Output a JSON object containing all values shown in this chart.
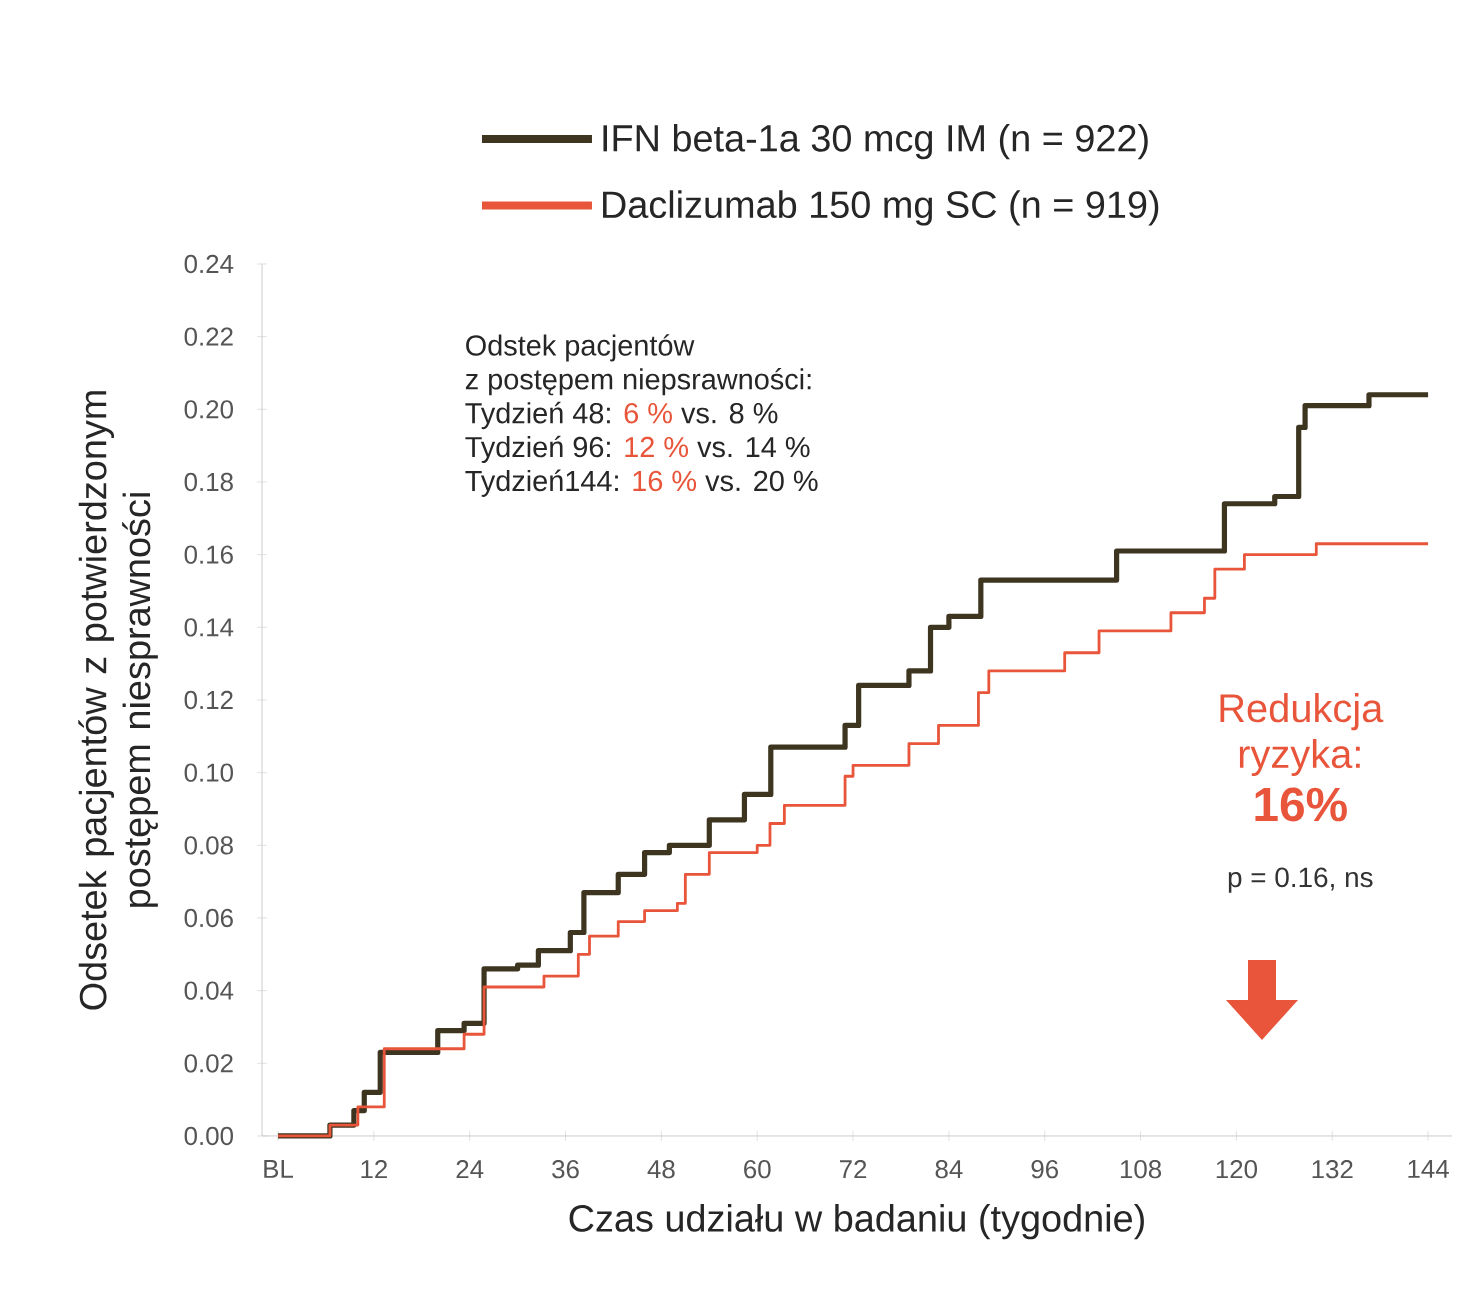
{
  "chart_data": {
    "type": "step",
    "xlabel": "Czas udziału w badaniu (tygodnie)",
    "ylabel": "Odsetek pacjentów z potwierdzonym postępem niesprawności",
    "xlim": [
      -2,
      147
    ],
    "ylim": [
      0,
      0.24
    ],
    "xticks": [
      {
        "value": 0,
        "label": "BL"
      },
      12,
      24,
      36,
      48,
      60,
      72,
      84,
      96,
      108,
      120,
      132,
      144
    ],
    "yticks": [
      {
        "value": 0,
        "label": "0.00"
      },
      {
        "value": 0.02,
        "label": "0.02"
      },
      {
        "value": 0.04,
        "label": "0.04"
      },
      {
        "value": 0.06,
        "label": "0.06"
      },
      {
        "value": 0.08,
        "label": "0.08"
      },
      {
        "value": 0.1,
        "label": "0.10"
      },
      {
        "value": 0.12,
        "label": "0.12"
      },
      {
        "value": 0.14,
        "label": "0.14"
      },
      {
        "value": 0.16,
        "label": "0.16"
      },
      {
        "value": 0.18,
        "label": "0.18"
      },
      {
        "value": 0.2,
        "label": "0.20"
      },
      {
        "value": 0.22,
        "label": "0.22"
      },
      {
        "value": 0.24,
        "label": "0.24"
      }
    ],
    "legend": "top",
    "series": [
      {
        "name": "IFN beta-1a 30 mcg IM (n = 922)",
        "color": "#3d3520",
        "x": [
          0,
          6.5,
          9.5,
          10.8,
          12.8,
          20,
          23.3,
          25.8,
          30,
          32.6,
          36.6,
          38.3,
          42.6,
          45.9,
          49,
          54,
          58.4,
          61.7,
          71,
          72.7,
          79,
          81.7,
          84,
          88,
          101.7,
          105,
          116.8,
          118.5,
          124.8,
          127.8,
          128.6,
          136.6,
          144
        ],
        "values": [
          0,
          0.003,
          0.007,
          0.012,
          0.023,
          0.029,
          0.031,
          0.046,
          0.047,
          0.051,
          0.056,
          0.067,
          0.072,
          0.078,
          0.08,
          0.087,
          0.094,
          0.107,
          0.113,
          0.124,
          0.128,
          0.14,
          0.143,
          0.153,
          0.153,
          0.161,
          0.161,
          0.174,
          0.176,
          0.195,
          0.201,
          0.204,
          0.204
        ]
      },
      {
        "name": "Daclizumab 150 mg SC (n = 919)",
        "color": "#e8553a",
        "x": [
          0,
          6.5,
          10,
          13.3,
          23.3,
          25.8,
          33.3,
          37.6,
          39,
          42.6,
          45.9,
          50,
          51,
          54,
          60,
          61.6,
          63.4,
          71,
          72,
          79,
          82.7,
          87.7,
          89,
          98.5,
          102.8,
          109,
          111.8,
          116,
          117.3,
          121,
          130,
          144
        ],
        "values": [
          0,
          0.003,
          0.008,
          0.024,
          0.028,
          0.041,
          0.044,
          0.05,
          0.055,
          0.059,
          0.062,
          0.064,
          0.072,
          0.078,
          0.08,
          0.086,
          0.091,
          0.099,
          0.102,
          0.108,
          0.113,
          0.122,
          0.128,
          0.133,
          0.139,
          0.139,
          0.144,
          0.148,
          0.156,
          0.16,
          0.163,
          0.163
        ]
      }
    ],
    "annotations": [
      "Odstek pacjentów",
      "z postępem niepsrawności:",
      "Tydzień 48:",
      "6 %",
      "vs. 8 %",
      "Tydzień 96:",
      "12 %",
      "vs. 14 %",
      "Tydzień144:",
      "16 %",
      "vs. 20 %",
      "Redukcja",
      "ryzyka:",
      "16%",
      "p = 0.16, ns"
    ]
  }
}
